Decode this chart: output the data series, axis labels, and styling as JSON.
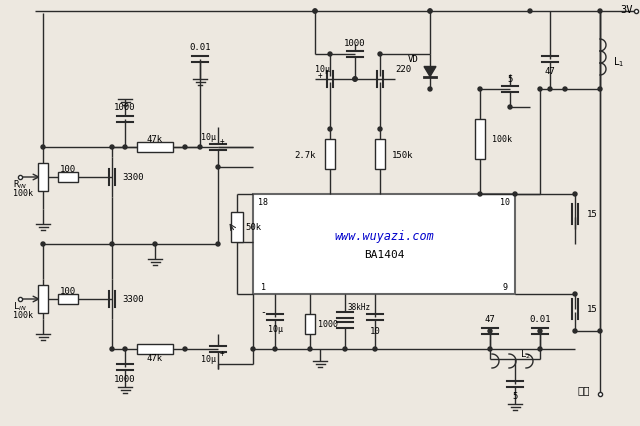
{
  "bg_color": "#ede8e0",
  "line_color": "#2a2a2a",
  "lw": 1.0,
  "watermark": "www.wuyazi.com",
  "watermark_color": "#0000cc",
  "chip_label": "BA1404",
  "supply": "3V",
  "output_label": "输出",
  "pin18": "18",
  "pin10": "10",
  "pin1": "1",
  "pin9": "9"
}
